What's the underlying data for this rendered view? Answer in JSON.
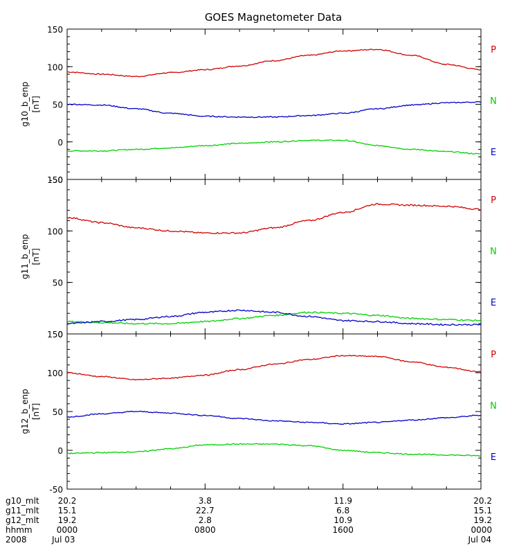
{
  "title": "GOES Magnetometer Data",
  "colors": {
    "P": "#d10000",
    "N": "#00d000",
    "E": "#0000c8",
    "axis": "#000000"
  },
  "chart_data": [
    {
      "type": "line",
      "ylabel": "g10_b_enp",
      "yunit": "[nT]",
      "ylim": [
        -50,
        150
      ],
      "yticks": [
        -50,
        0,
        50,
        100,
        150
      ],
      "legend": [
        "P",
        "N",
        "E"
      ],
      "x": [
        0,
        2,
        4,
        6,
        8,
        10,
        12,
        14,
        16,
        18,
        20,
        22,
        24
      ],
      "series": [
        {
          "name": "P",
          "color": "P",
          "values": [
            93,
            90,
            87,
            92,
            96,
            101,
            108,
            115,
            121,
            123,
            115,
            103,
            96
          ]
        },
        {
          "name": "N",
          "color": "N",
          "values": [
            -12,
            -12,
            -10,
            -8,
            -5,
            -2,
            0,
            2,
            2,
            -5,
            -10,
            -13,
            -16
          ]
        },
        {
          "name": "E",
          "color": "E",
          "values": [
            50,
            49,
            44,
            38,
            34,
            33,
            33,
            35,
            38,
            44,
            49,
            52,
            53
          ]
        }
      ]
    },
    {
      "type": "line",
      "ylabel": "g11_b_enp",
      "yunit": "[nT]",
      "ylim": [
        0,
        150
      ],
      "yticks": [
        0,
        50,
        100,
        150
      ],
      "legend": [
        "P",
        "N",
        "E"
      ],
      "x": [
        0,
        2,
        4,
        6,
        8,
        10,
        12,
        14,
        16,
        18,
        20,
        22,
        24
      ],
      "series": [
        {
          "name": "P",
          "color": "P",
          "values": [
            113,
            108,
            103,
            100,
            98,
            98,
            103,
            110,
            118,
            126,
            125,
            124,
            121
          ]
        },
        {
          "name": "N",
          "color": "N",
          "values": [
            12,
            11,
            10,
            10,
            12,
            15,
            18,
            21,
            20,
            18,
            15,
            14,
            13
          ]
        },
        {
          "name": "E",
          "color": "E",
          "values": [
            10,
            12,
            14,
            17,
            21,
            23,
            21,
            17,
            13,
            12,
            10,
            9,
            9
          ]
        }
      ]
    },
    {
      "type": "line",
      "ylabel": "g12_b_enp",
      "yunit": "[nT]",
      "ylim": [
        -50,
        150
      ],
      "yticks": [
        -50,
        0,
        50,
        100,
        150
      ],
      "legend": [
        "P",
        "N",
        "E"
      ],
      "x": [
        0,
        2,
        4,
        6,
        8,
        10,
        12,
        14,
        16,
        18,
        20,
        22,
        24
      ],
      "series": [
        {
          "name": "P",
          "color": "P",
          "values": [
            100,
            95,
            91,
            93,
            97,
            104,
            111,
            117,
            122,
            121,
            114,
            107,
            101
          ]
        },
        {
          "name": "N",
          "color": "N",
          "values": [
            -4,
            -3,
            -2,
            2,
            7,
            8,
            8,
            6,
            0,
            -3,
            -5,
            -6,
            -7
          ]
        },
        {
          "name": "E",
          "color": "E",
          "values": [
            43,
            47,
            50,
            48,
            45,
            41,
            38,
            36,
            34,
            36,
            39,
            42,
            45
          ]
        }
      ]
    }
  ],
  "xaxis": {
    "row_labels": [
      "g10_mlt",
      "g11_mlt",
      "g12_mlt",
      "hhmm",
      "2008"
    ],
    "columns": [
      [
        "20.2",
        "15.1",
        "19.2",
        "0000",
        "Jul 03"
      ],
      [
        "3.8",
        "22.7",
        "2.8",
        "0800",
        ""
      ],
      [
        "11.9",
        "6.8",
        "10.9",
        "1600",
        ""
      ],
      [
        "20.2",
        "15.1",
        "19.2",
        "0000",
        "Jul 04"
      ]
    ]
  }
}
